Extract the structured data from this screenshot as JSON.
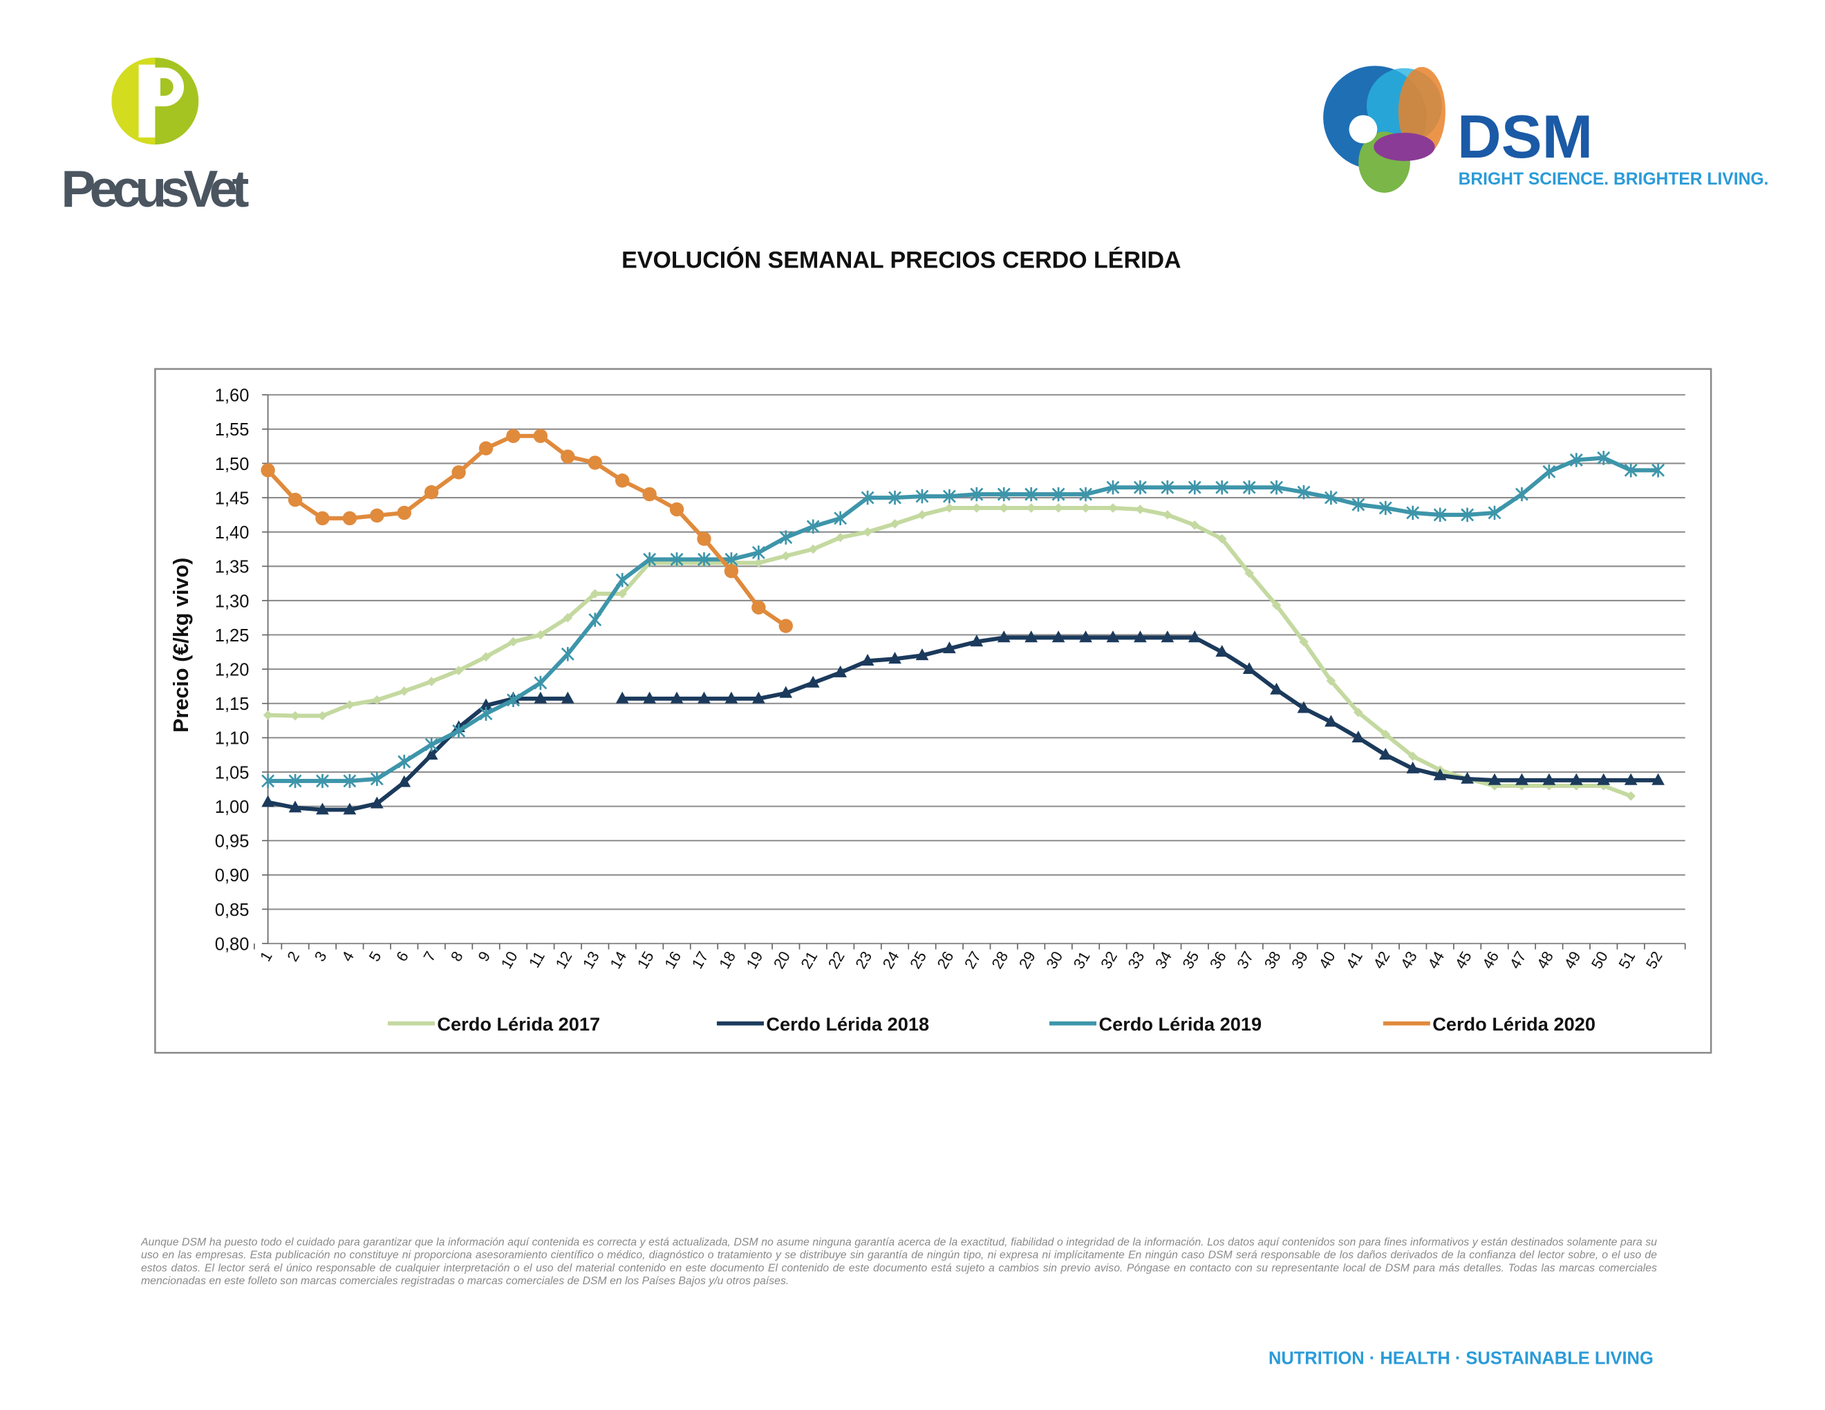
{
  "header": {
    "left_logo": "PecusVet",
    "right_logo": "DSM",
    "tagline": "BRIGHT SCIENCE. BRIGHTER LIVING."
  },
  "chart_data": {
    "type": "line",
    "title": "EVOLUCIÓN SEMANAL PRECIOS CERDO LÉRIDA",
    "y_label": "Precio (€/kg vivo)",
    "categories": [
      "1",
      "2",
      "3",
      "4",
      "5",
      "6",
      "7",
      "8",
      "9",
      "10",
      "11",
      "12",
      "13",
      "14",
      "15",
      "16",
      "17",
      "18",
      "19",
      "20",
      "21",
      "22",
      "23",
      "24",
      "25",
      "26",
      "27",
      "28",
      "29",
      "30",
      "31",
      "32",
      "33",
      "34",
      "35",
      "36",
      "37",
      "38",
      "39",
      "40",
      "41",
      "42",
      "43",
      "44",
      "45",
      "46",
      "47",
      "48",
      "49",
      "50",
      "51",
      "52"
    ],
    "ylim": [
      0.8,
      1.6
    ],
    "yticks": [
      {
        "value": 0.8,
        "label": "0,80"
      },
      {
        "value": 0.85,
        "label": "0,85"
      },
      {
        "value": 0.9,
        "label": "0,90"
      },
      {
        "value": 0.95,
        "label": "0,95"
      },
      {
        "value": 1.0,
        "label": "1,00"
      },
      {
        "value": 1.05,
        "label": "1,05"
      },
      {
        "value": 1.1,
        "label": "1,10"
      },
      {
        "value": 1.15,
        "label": "1,15"
      },
      {
        "value": 1.2,
        "label": "1,20"
      },
      {
        "value": 1.25,
        "label": "1,25"
      },
      {
        "value": 1.3,
        "label": "1,30"
      },
      {
        "value": 1.35,
        "label": "1,35"
      },
      {
        "value": 1.4,
        "label": "1,40"
      },
      {
        "value": 1.45,
        "label": "1,45"
      },
      {
        "value": 1.5,
        "label": "1,50"
      },
      {
        "value": 1.55,
        "label": "1,55"
      },
      {
        "value": 1.6,
        "label": "1,60"
      }
    ],
    "grid": true,
    "legend": "bottom",
    "series": [
      {
        "name": "Cerdo Lérida 2017",
        "color": "#c4d9a0",
        "marker": "diamond",
        "values": [
          1.133,
          1.132,
          1.132,
          1.148,
          1.155,
          1.168,
          1.182,
          1.198,
          1.218,
          1.24,
          1.25,
          1.275,
          1.31,
          1.31,
          1.355,
          1.355,
          1.355,
          1.355,
          1.355,
          1.365,
          1.375,
          1.392,
          1.4,
          1.412,
          1.425,
          1.435,
          1.435,
          1.435,
          1.435,
          1.435,
          1.435,
          1.435,
          1.433,
          1.425,
          1.41,
          1.39,
          1.34,
          1.293,
          1.24,
          1.183,
          1.137,
          1.105,
          1.073,
          1.053,
          1.04,
          1.03,
          1.03,
          1.03,
          1.03,
          1.03,
          1.015,
          null
        ]
      },
      {
        "name": "Cerdo Lérida 2018",
        "color": "#1b3a5c",
        "marker": "triangle",
        "values": [
          1.006,
          0.998,
          0.995,
          0.995,
          1.004,
          1.035,
          1.075,
          1.115,
          1.147,
          1.157,
          1.157,
          1.157,
          null,
          1.157,
          1.157,
          1.157,
          1.157,
          1.157,
          1.157,
          1.165,
          1.18,
          1.195,
          1.212,
          1.215,
          1.22,
          1.23,
          1.24,
          1.246,
          1.246,
          1.246,
          1.246,
          1.246,
          1.246,
          1.246,
          1.246,
          1.225,
          1.2,
          1.17,
          1.143,
          1.123,
          1.1,
          1.075,
          1.055,
          1.045,
          1.04,
          1.038,
          1.038,
          1.038,
          1.038,
          1.038,
          1.038,
          1.038
        ]
      },
      {
        "name": "Cerdo Lérida 2019",
        "color": "#3d95aa",
        "marker": "star",
        "values": [
          1.037,
          1.037,
          1.037,
          1.037,
          1.04,
          1.065,
          1.09,
          1.11,
          1.135,
          1.155,
          1.18,
          1.222,
          1.272,
          1.33,
          1.36,
          1.36,
          1.36,
          1.36,
          1.37,
          1.392,
          1.408,
          1.42,
          1.45,
          1.45,
          1.452,
          1.452,
          1.455,
          1.455,
          1.455,
          1.455,
          1.455,
          1.465,
          1.465,
          1.465,
          1.465,
          1.465,
          1.465,
          1.465,
          1.458,
          1.45,
          1.44,
          1.435,
          1.428,
          1.425,
          1.425,
          1.428,
          1.455,
          1.488,
          1.505,
          1.508,
          1.49,
          1.49
        ]
      },
      {
        "name": "Cerdo Lérida 2020",
        "color": "#e08a3c",
        "marker": "circle",
        "values": [
          1.49,
          1.447,
          1.42,
          1.42,
          1.424,
          1.428,
          1.458,
          1.487,
          1.522,
          1.54,
          1.54,
          1.51,
          1.501,
          1.475,
          1.455,
          1.433,
          1.39,
          1.343,
          1.29,
          1.263,
          null,
          null,
          null,
          null,
          null,
          null,
          null,
          null,
          null,
          null,
          null,
          null,
          null,
          null,
          null,
          null,
          null,
          null,
          null,
          null,
          null,
          null,
          null,
          null,
          null,
          null,
          null,
          null,
          null,
          null,
          null,
          null
        ]
      }
    ]
  },
  "footer": {
    "disclaimer": "Aunque DSM ha puesto todo el cuidado para garantizar que la información aquí contenida es correcta y está actualizada, DSM no asume ninguna garantía acerca de la exactitud, fiabilidad o integridad de la información. Los datos aquí contenidos son para fines informativos y están destinados solamente para su uso en las empresas. Esta publicación no constituye ni proporciona asesoramiento científico o médico, diagnóstico o tratamiento y se distribuye sin garantía de ningún tipo, ni expresa ni implícitamente En ningún caso DSM será responsable de los daños derivados de la confianza del lector sobre, o el uso de estos datos. El lector será el único responsable de cualquier interpretación o el uso del material contenido en este documento El contenido de este documento está sujeto a cambios sin previo aviso. Póngase en contacto con su representante local de DSM para más detalles. Todas las marcas comerciales mencionadas en este folleto son marcas comerciales registradas o marcas comerciales de DSM en los Países Bajos y/u otros países.",
    "slogan": "NUTRITION · HEALTH · SUSTAINABLE LIVING"
  }
}
